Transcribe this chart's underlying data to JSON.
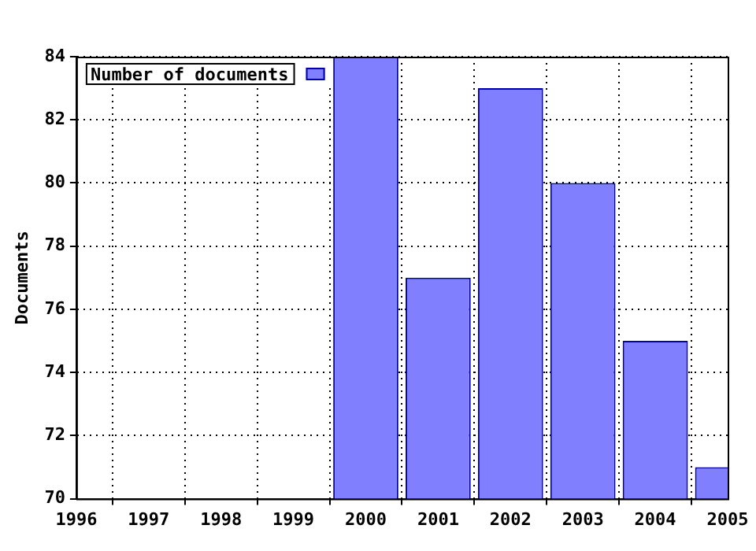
{
  "chart_data": {
    "type": "bar",
    "ylabel": "Documents",
    "x": [
      2000,
      2001,
      2002,
      2003,
      2004,
      2005
    ],
    "series": [
      {
        "name": "Number of documents",
        "color": "#8080ff",
        "values": [
          84,
          77,
          83,
          80,
          75,
          71
        ]
      }
    ],
    "xlim": [
      1996,
      2005
    ],
    "xticks": [
      1996,
      1997,
      1998,
      1999,
      2000,
      2001,
      2002,
      2003,
      2004,
      2005
    ],
    "ylim": [
      70,
      84
    ],
    "yticks": [
      70,
      72,
      74,
      76,
      78,
      80,
      82,
      84
    ],
    "grid": true,
    "legend": "top left"
  }
}
